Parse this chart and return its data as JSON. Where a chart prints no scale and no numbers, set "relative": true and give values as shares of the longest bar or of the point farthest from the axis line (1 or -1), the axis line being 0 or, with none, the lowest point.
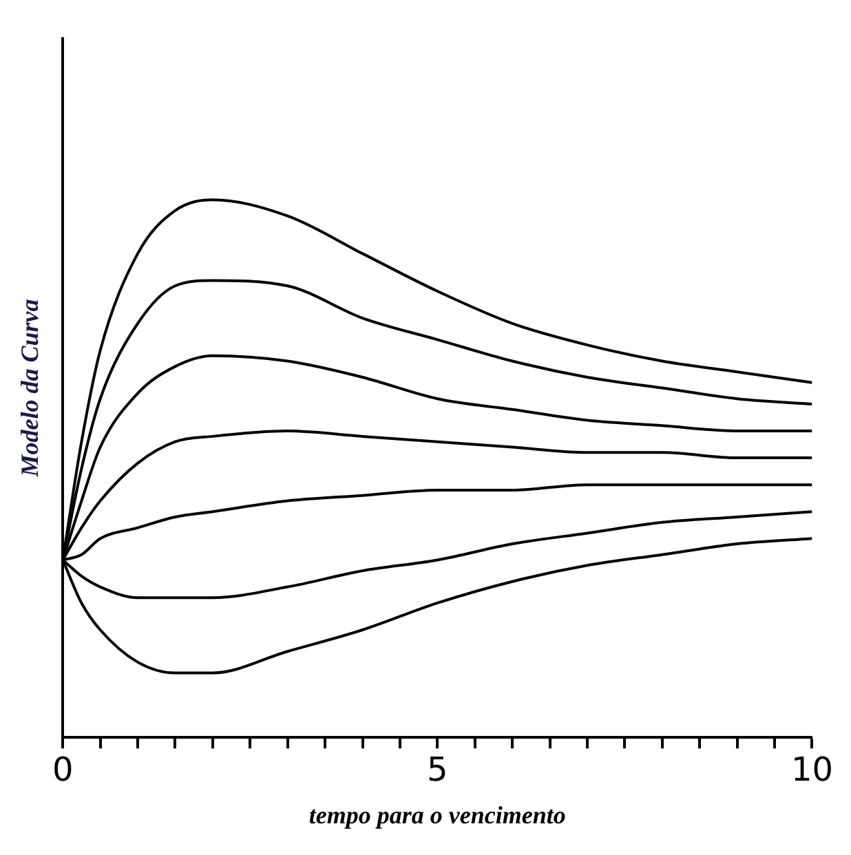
{
  "chart_data": {
    "type": "line",
    "relative": true,
    "xlabel": "tempo para o vencimento",
    "ylabel": "Modelo da Curva",
    "grid": false,
    "legend": false,
    "marker": "none",
    "line_style": "solid",
    "x": [
      0,
      0.25,
      0.5,
      1,
      1.5,
      2,
      3,
      4,
      5,
      6,
      7,
      8,
      9,
      10
    ],
    "xlim": [
      0,
      10
    ],
    "xticks": [
      0,
      {
        "value": 0.5,
        "label": null
      },
      {
        "value": 1,
        "label": null
      },
      {
        "value": 1.5,
        "label": null
      },
      {
        "value": 2,
        "label": null
      },
      {
        "value": 2.5,
        "label": null
      },
      {
        "value": 3,
        "label": null
      },
      {
        "value": 3.5,
        "label": null
      },
      {
        "value": 4,
        "label": null
      },
      {
        "value": 4.5,
        "label": null
      },
      5,
      {
        "value": 5.5,
        "label": null
      },
      {
        "value": 6,
        "label": null
      },
      {
        "value": 6.5,
        "label": null
      },
      {
        "value": 7,
        "label": null
      },
      {
        "value": 7.5,
        "label": null
      },
      {
        "value": 8,
        "label": null
      },
      {
        "value": 8.5,
        "label": null
      },
      {
        "value": 9,
        "label": null
      },
      {
        "value": 9.5,
        "label": null
      },
      10
    ],
    "series": [
      {
        "color": "#000000",
        "values": [
          0.33,
          0.55,
          0.72,
          0.9,
          0.98,
          1.0,
          0.97,
          0.9,
          0.83,
          0.77,
          0.73,
          0.7,
          0.68,
          0.66
        ]
      },
      {
        "color": "#000000",
        "values": [
          0.33,
          0.5,
          0.63,
          0.77,
          0.84,
          0.85,
          0.84,
          0.78,
          0.74,
          0.7,
          0.67,
          0.65,
          0.63,
          0.62
        ]
      },
      {
        "color": "#000000",
        "values": [
          0.33,
          0.44,
          0.54,
          0.64,
          0.69,
          0.71,
          0.7,
          0.67,
          0.63,
          0.61,
          0.59,
          0.58,
          0.57,
          0.57
        ]
      },
      {
        "color": "#000000",
        "values": [
          0.33,
          0.39,
          0.44,
          0.51,
          0.55,
          0.56,
          0.57,
          0.56,
          0.55,
          0.54,
          0.53,
          0.53,
          0.52,
          0.52
        ]
      },
      {
        "color": "#000000",
        "values": [
          0.33,
          0.34,
          0.37,
          0.39,
          0.41,
          0.42,
          0.44,
          0.45,
          0.46,
          0.46,
          0.47,
          0.47,
          0.47,
          0.47
        ]
      },
      {
        "color": "#000000",
        "values": [
          0.33,
          0.3,
          0.28,
          0.26,
          0.26,
          0.26,
          0.28,
          0.31,
          0.33,
          0.36,
          0.38,
          0.4,
          0.41,
          0.42
        ]
      },
      {
        "color": "#000000",
        "values": [
          0.33,
          0.25,
          0.2,
          0.14,
          0.12,
          0.12,
          0.16,
          0.2,
          0.25,
          0.29,
          0.32,
          0.34,
          0.36,
          0.37
        ]
      }
    ]
  }
}
